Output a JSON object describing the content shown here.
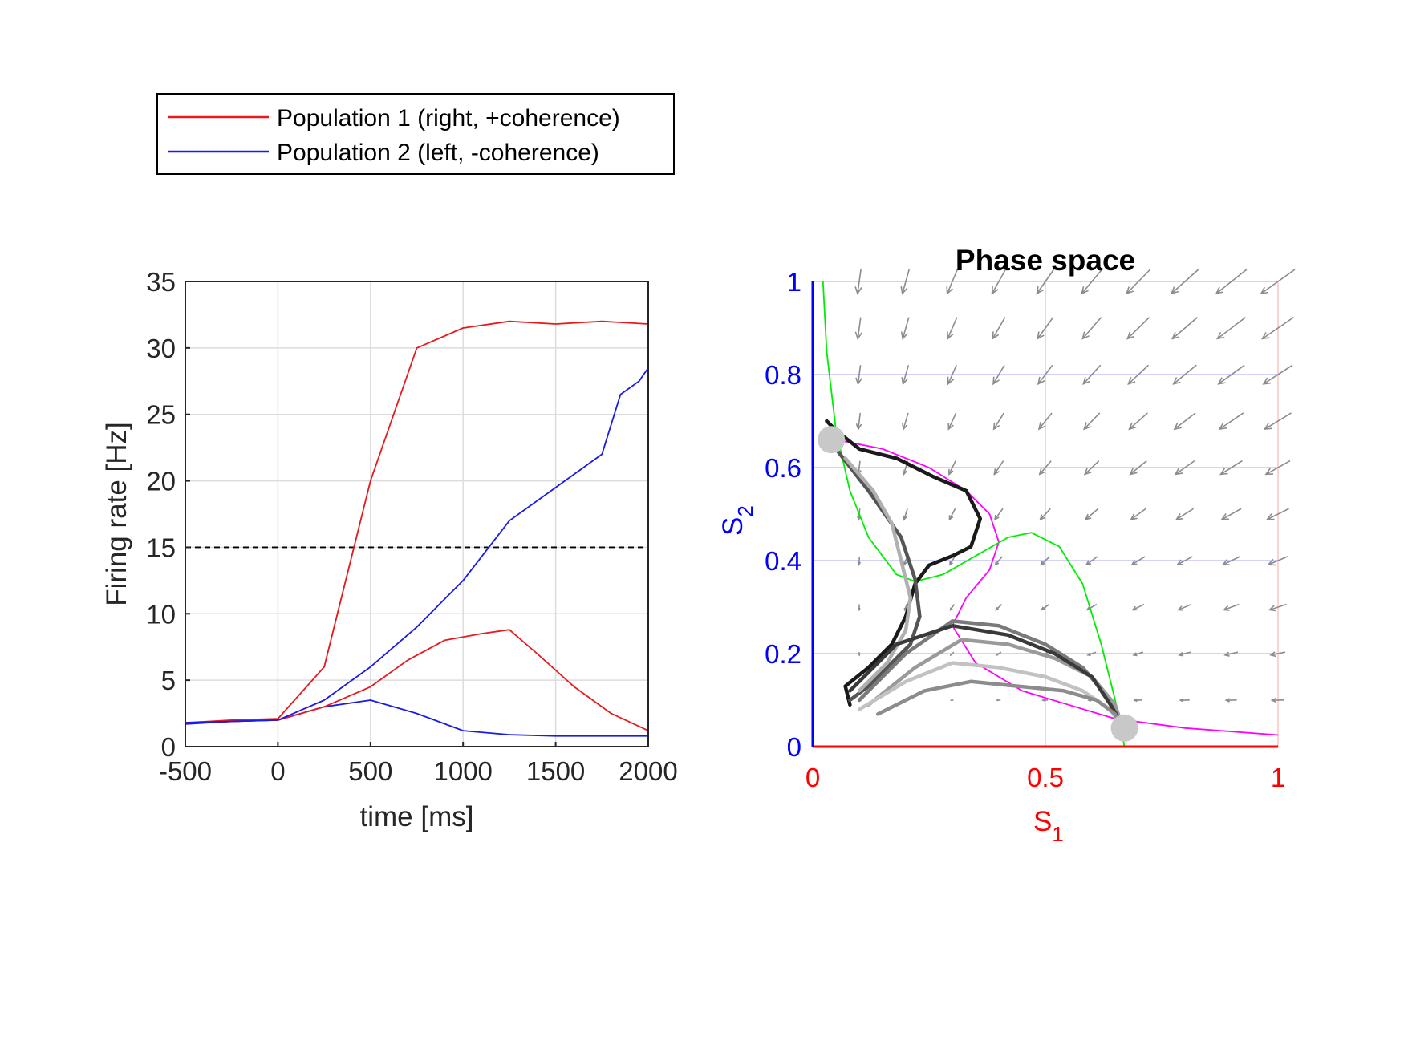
{
  "legend": {
    "items": [
      {
        "label": "Population 1 (right, +coherence)",
        "color": "#e8191c"
      },
      {
        "label": "Population 2 (left, -coherence)",
        "color": "#1a1aeb"
      }
    ]
  },
  "chart_data": [
    {
      "type": "line",
      "title": "",
      "xlabel": "time [ms]",
      "ylabel": "Firing rate [Hz]",
      "xlim": [
        -500,
        2000
      ],
      "ylim": [
        0,
        35
      ],
      "xticks": [
        -500,
        0,
        500,
        1000,
        1500,
        2000
      ],
      "xtick_labels": [
        "-500",
        "0",
        "500",
        "1000",
        "1500",
        "2000"
      ],
      "yticks": [
        0,
        5,
        10,
        15,
        20,
        25,
        30,
        35
      ],
      "ytick_labels": [
        "0",
        "5",
        "10",
        "15",
        "20",
        "25",
        "30",
        "35"
      ],
      "grid": true,
      "threshold": {
        "y": 15,
        "style": "dashed",
        "color": "#000000"
      },
      "series": [
        {
          "name": "Population 1 (right, +coherence)",
          "color": "#e8191c",
          "x": [
            -500,
            -250,
            0,
            250,
            500,
            750,
            1000,
            1250,
            1500,
            1750,
            2000
          ],
          "y": [
            1.8,
            2.0,
            2.1,
            6.0,
            20.0,
            30.0,
            31.5,
            32.0,
            31.8,
            32.0,
            31.8
          ]
        },
        {
          "name": "Population 2 (left, -coherence)",
          "color": "#1a1aeb",
          "x": [
            -500,
            -250,
            0,
            250,
            500,
            750,
            1000,
            1250,
            1500,
            1750,
            2000
          ],
          "y": [
            1.7,
            1.9,
            2.0,
            3.0,
            3.5,
            2.5,
            1.2,
            0.9,
            0.8,
            0.8,
            0.8
          ]
        },
        {
          "name": "",
          "color": "#e8191c",
          "x": [
            -500,
            0,
            250,
            500,
            700,
            900,
            1100,
            1250,
            1400,
            1600,
            1800,
            2000
          ],
          "y": [
            1.8,
            2.0,
            3.0,
            4.5,
            6.5,
            8.0,
            8.5,
            8.8,
            7.0,
            4.5,
            2.5,
            1.2
          ]
        },
        {
          "name": "",
          "color": "#1a1aeb",
          "x": [
            -500,
            0,
            250,
            500,
            750,
            1000,
            1250,
            1500,
            1750,
            1850,
            1950,
            2000
          ],
          "y": [
            1.8,
            2.0,
            3.5,
            6.0,
            9.0,
            12.5,
            17.0,
            19.5,
            22.0,
            26.5,
            27.5,
            28.5
          ]
        }
      ]
    },
    {
      "type": "scatter",
      "title": "Phase space",
      "xlabel": "S",
      "xlabel_sub": "1",
      "ylabel": "S",
      "ylabel_sub": "2",
      "xlim": [
        0,
        1
      ],
      "ylim": [
        0,
        1
      ],
      "xticks": [
        0,
        0.5,
        1
      ],
      "xtick_labels": [
        "0",
        "0.5",
        "1"
      ],
      "yticks": [
        0,
        0.2,
        0.4,
        0.6,
        0.8,
        1
      ],
      "ytick_labels": [
        "0",
        "0.2",
        "0.4",
        "0.6",
        "0.8",
        "1"
      ],
      "x_axis_color": "#ff0000",
      "y_axis_color": "#0000ff",
      "grid": true,
      "nullclines": [
        {
          "name": "",
          "color": "#ff00ff",
          "x": [
            0.05,
            0.15,
            0.25,
            0.33,
            0.38,
            0.4,
            0.38,
            0.33,
            0.3,
            0.35,
            0.45,
            0.55,
            0.65,
            0.8,
            1.0
          ],
          "y": [
            0.66,
            0.64,
            0.6,
            0.55,
            0.5,
            0.44,
            0.38,
            0.32,
            0.26,
            0.18,
            0.12,
            0.09,
            0.06,
            0.04,
            0.025
          ]
        },
        {
          "name": "",
          "color": "#00ee00",
          "x": [
            0.022,
            0.03,
            0.05,
            0.08,
            0.12,
            0.18,
            0.22,
            0.28,
            0.35,
            0.42,
            0.47,
            0.53,
            0.58,
            0.62,
            0.65,
            0.67
          ],
          "y": [
            1.0,
            0.85,
            0.68,
            0.55,
            0.45,
            0.37,
            0.355,
            0.37,
            0.41,
            0.45,
            0.46,
            0.43,
            0.35,
            0.22,
            0.1,
            0.0
          ]
        }
      ],
      "trajectories": [
        {
          "color": "#1a1a1a",
          "x": [
            0.03,
            0.05,
            0.1,
            0.18,
            0.26,
            0.33,
            0.36,
            0.34,
            0.3,
            0.25,
            0.22,
            0.2,
            0.17,
            0.12,
            0.07,
            0.08
          ],
          "y": [
            0.7,
            0.68,
            0.64,
            0.62,
            0.58,
            0.55,
            0.49,
            0.43,
            0.41,
            0.39,
            0.35,
            0.28,
            0.22,
            0.17,
            0.13,
            0.09
          ]
        },
        {
          "color": "#555555",
          "x": [
            0.05,
            0.12,
            0.19,
            0.22,
            0.23,
            0.21,
            0.17,
            0.12,
            0.08
          ],
          "y": [
            0.64,
            0.55,
            0.45,
            0.36,
            0.28,
            0.22,
            0.18,
            0.13,
            0.1
          ]
        },
        {
          "color": "#b0b0b0",
          "x": [
            0.07,
            0.13,
            0.17,
            0.19,
            0.21,
            0.2,
            0.16,
            0.1
          ],
          "y": [
            0.62,
            0.55,
            0.48,
            0.4,
            0.32,
            0.25,
            0.18,
            0.12
          ]
        },
        {
          "color": "#7a7a7a",
          "x": [
            0.1,
            0.2,
            0.3,
            0.4,
            0.5,
            0.58,
            0.64,
            0.67
          ],
          "y": [
            0.1,
            0.2,
            0.27,
            0.26,
            0.22,
            0.17,
            0.1,
            0.04
          ]
        },
        {
          "color": "#9a9a9a",
          "x": [
            0.12,
            0.22,
            0.32,
            0.42,
            0.52,
            0.6,
            0.65,
            0.67
          ],
          "y": [
            0.09,
            0.17,
            0.23,
            0.22,
            0.19,
            0.15,
            0.09,
            0.03
          ]
        },
        {
          "color": "#c2c2c2",
          "x": [
            0.1,
            0.2,
            0.3,
            0.4,
            0.5,
            0.58,
            0.64,
            0.67
          ],
          "y": [
            0.08,
            0.14,
            0.18,
            0.17,
            0.15,
            0.12,
            0.08,
            0.03
          ]
        },
        {
          "color": "#3a3a3a",
          "x": [
            0.08,
            0.18,
            0.3,
            0.42,
            0.52,
            0.6,
            0.64,
            0.67
          ],
          "y": [
            0.12,
            0.22,
            0.26,
            0.24,
            0.2,
            0.15,
            0.09,
            0.04
          ]
        },
        {
          "color": "#8c8c8c",
          "x": [
            0.14,
            0.24,
            0.34,
            0.44,
            0.54,
            0.61,
            0.65,
            0.67
          ],
          "y": [
            0.07,
            0.12,
            0.14,
            0.13,
            0.12,
            0.1,
            0.07,
            0.02
          ]
        }
      ],
      "fixed_points": [
        {
          "x": 0.04,
          "y": 0.66,
          "color": "#c8c8c8"
        },
        {
          "x": 0.67,
          "y": 0.04,
          "color": "#c8c8c8"
        }
      ]
    }
  ]
}
